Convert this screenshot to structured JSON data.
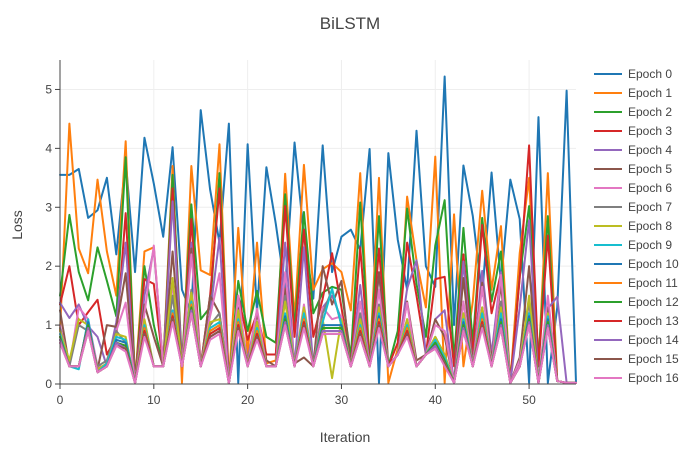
{
  "chart_data": {
    "type": "line",
    "title": "BiLSTM",
    "xlabel": "Iteration",
    "ylabel": "Loss",
    "xlim": [
      0,
      55
    ],
    "ylim": [
      0,
      5.5
    ],
    "x_ticks": [
      0,
      10,
      20,
      30,
      40,
      50
    ],
    "y_ticks": [
      0,
      1,
      2,
      3,
      4,
      5
    ],
    "grid": true,
    "legend_position": "right",
    "x": [
      0,
      1,
      2,
      3,
      4,
      5,
      6,
      7,
      8,
      9,
      10,
      11,
      12,
      13,
      14,
      15,
      16,
      17,
      18,
      19,
      20,
      21,
      22,
      23,
      24,
      25,
      26,
      27,
      28,
      29,
      30,
      31,
      32,
      33,
      34,
      35,
      36,
      37,
      38,
      39,
      40,
      41,
      42,
      43,
      44,
      45,
      46,
      47,
      48,
      49,
      50,
      51,
      52,
      53,
      54,
      55
    ],
    "series": [
      {
        "name": "Epoch 0",
        "color": "#1f77b4",
        "values": [
          3.55,
          3.55,
          3.65,
          2.82,
          2.95,
          3.5,
          2.2,
          3.8,
          1.9,
          4.18,
          3.4,
          2.5,
          4.02,
          1.6,
          1.2,
          4.65,
          3.3,
          2.4,
          4.42,
          0.02,
          4.07,
          1.22,
          3.68,
          2.72,
          1.6,
          4.1,
          2.5,
          1.45,
          4.05,
          1.9,
          2.5,
          2.62,
          2.28,
          3.99,
          0.02,
          3.92,
          2.45,
          1.6,
          4.3,
          2.0,
          1.65,
          5.22,
          1.0,
          3.71,
          2.85,
          1.5,
          3.59,
          1.72,
          3.47,
          2.8,
          0.02,
          4.53,
          0.02,
          1.3,
          4.98,
          0.02
        ]
      },
      {
        "name": "Epoch 1",
        "color": "#ff7f0e",
        "values": [
          0.9,
          4.42,
          2.3,
          1.88,
          3.47,
          2.25,
          1.5,
          4.12,
          0.02,
          2.25,
          2.32,
          0.3,
          3.7,
          0.02,
          3.7,
          1.93,
          1.85,
          4.07,
          0.02,
          2.65,
          0.5,
          2.4,
          0.35,
          0.4,
          3.57,
          1.1,
          3.72,
          1.6,
          1.95,
          2.05,
          1.9,
          1.25,
          3.58,
          0.3,
          3.5,
          0.02,
          0.6,
          3.18,
          2.1,
          1.3,
          3.86,
          0.02,
          2.88,
          0.3,
          1.4,
          3.28,
          1.6,
          2.68,
          0.02,
          2.22,
          3.5,
          0.3,
          3.58,
          0.05,
          0.02,
          0.02
        ]
      },
      {
        "name": "Epoch 2",
        "color": "#2ca02c",
        "values": [
          1.5,
          2.87,
          1.9,
          1.42,
          2.32,
          1.75,
          1.15,
          3.85,
          0.02,
          2.0,
          1.0,
          0.3,
          3.55,
          0.35,
          3.05,
          1.1,
          1.3,
          3.58,
          0.02,
          1.75,
          0.9,
          1.58,
          0.8,
          0.7,
          3.22,
          0.95,
          2.92,
          1.2,
          1.55,
          1.65,
          1.6,
          0.45,
          3.08,
          0.3,
          2.85,
          0.3,
          0.9,
          2.98,
          1.7,
          0.8,
          2.35,
          3.12,
          0.4,
          2.65,
          0.7,
          2.82,
          1.4,
          2.25,
          0.02,
          1.82,
          3.02,
          0.4,
          2.85,
          0.05,
          0.02,
          0.02
        ]
      },
      {
        "name": "Epoch 3",
        "color": "#d62728",
        "values": [
          1.35,
          2.0,
          1.0,
          1.22,
          1.43,
          0.5,
          0.8,
          2.9,
          0.02,
          1.78,
          1.7,
          0.3,
          3.32,
          0.3,
          2.8,
          0.3,
          1.5,
          3.32,
          0.02,
          1.5,
          0.75,
          1.2,
          0.5,
          0.5,
          3.02,
          0.8,
          2.62,
          0.8,
          1.45,
          2.22,
          1.3,
          0.3,
          2.32,
          0.3,
          2.3,
          0.3,
          0.7,
          2.4,
          1.5,
          0.5,
          1.78,
          1.82,
          0.3,
          2.2,
          0.5,
          2.7,
          1.2,
          1.88,
          0.02,
          1.8,
          4.05,
          0.3,
          2.52,
          0.05,
          0.02,
          0.02
        ]
      },
      {
        "name": "Epoch 4",
        "color": "#9467bd",
        "values": [
          1.38,
          1.12,
          1.35,
          0.98,
          0.8,
          0.3,
          1.05,
          2.4,
          0.02,
          1.5,
          2.3,
          0.3,
          3.1,
          0.3,
          2.4,
          0.3,
          1.2,
          2.48,
          0.02,
          1.3,
          0.4,
          1.25,
          0.3,
          0.3,
          2.4,
          0.3,
          2.32,
          0.3,
          1.3,
          1.5,
          1.1,
          0.3,
          1.68,
          0.3,
          1.88,
          0.3,
          0.5,
          1.62,
          2.1,
          0.5,
          1.1,
          1.25,
          0.02,
          2.08,
          0.3,
          1.92,
          0.5,
          1.9,
          0.02,
          1.3,
          2.78,
          0.02,
          1.28,
          1.48,
          0.02,
          0.02
        ]
      },
      {
        "name": "Epoch 5",
        "color": "#8c564b",
        "values": [
          1.25,
          0.3,
          0.3,
          1.05,
          0.25,
          1.0,
          0.97,
          1.88,
          0.02,
          1.35,
          0.8,
          0.3,
          2.25,
          0.3,
          2.3,
          0.3,
          1.5,
          1.2,
          0.02,
          1.28,
          0.35,
          1.2,
          0.4,
          0.3,
          1.62,
          0.35,
          0.45,
          0.3,
          2.0,
          1.35,
          1.75,
          0.3,
          0.8,
          0.3,
          1.9,
          0.3,
          0.5,
          1.4,
          0.4,
          0.5,
          1.1,
          0.8,
          0.02,
          1.8,
          0.3,
          1.72,
          0.4,
          1.7,
          0.02,
          0.45,
          2.0,
          0.02,
          1.3,
          0.05,
          0.02,
          0.02
        ]
      },
      {
        "name": "Epoch 6",
        "color": "#e377c2",
        "values": [
          1.0,
          0.3,
          1.3,
          1.1,
          0.3,
          0.3,
          0.9,
          1.38,
          0.02,
          1.2,
          2.35,
          0.3,
          1.7,
          0.3,
          2.2,
          0.3,
          1.15,
          1.88,
          0.02,
          1.5,
          0.3,
          1.28,
          0.3,
          0.3,
          1.9,
          0.3,
          1.35,
          0.3,
          1.3,
          1.1,
          1.15,
          0.3,
          1.4,
          0.3,
          1.6,
          0.3,
          0.5,
          1.38,
          0.3,
          0.5,
          1.0,
          0.9,
          0.02,
          1.4,
          0.3,
          1.65,
          0.3,
          1.85,
          0.02,
          0.4,
          1.4,
          0.02,
          1.5,
          0.05,
          0.02,
          0.02
        ]
      },
      {
        "name": "Epoch 7",
        "color": "#7f7f7f",
        "values": [
          0.95,
          0.3,
          1.0,
          0.9,
          0.3,
          0.4,
          0.9,
          0.7,
          0.02,
          1.0,
          0.3,
          0.3,
          1.5,
          0.3,
          1.6,
          0.3,
          1.0,
          1.2,
          0.02,
          1.2,
          0.3,
          1.0,
          0.3,
          0.3,
          1.5,
          0.3,
          1.2,
          0.3,
          1.2,
          1.6,
          1.0,
          0.3,
          1.2,
          0.3,
          1.35,
          0.3,
          0.5,
          1.1,
          0.3,
          0.5,
          0.8,
          0.5,
          0.02,
          1.2,
          0.3,
          1.3,
          0.3,
          1.4,
          0.02,
          0.3,
          1.4,
          0.02,
          1.2,
          0.05,
          0.02,
          0.02
        ]
      },
      {
        "name": "Epoch 8",
        "color": "#bcbd22",
        "values": [
          0.9,
          0.4,
          1.1,
          1.0,
          0.25,
          0.35,
          0.85,
          0.8,
          0.02,
          1.1,
          0.3,
          0.3,
          1.8,
          0.3,
          1.55,
          0.3,
          1.05,
          1.1,
          0.02,
          1.25,
          0.3,
          1.05,
          0.3,
          0.3,
          1.4,
          0.3,
          1.3,
          0.3,
          1.1,
          0.1,
          1.1,
          0.3,
          1.1,
          0.3,
          1.3,
          0.3,
          0.5,
          1.1,
          0.3,
          0.5,
          0.8,
          0.5,
          0.02,
          1.2,
          0.3,
          1.3,
          0.3,
          1.3,
          0.02,
          0.3,
          1.5,
          0.02,
          1.2,
          0.05,
          0.02,
          0.02
        ]
      },
      {
        "name": "Epoch 9",
        "color": "#17becf",
        "values": [
          0.85,
          0.3,
          0.25,
          1.1,
          0.2,
          0.35,
          0.8,
          0.75,
          0.02,
          1.0,
          0.3,
          0.3,
          1.25,
          0.3,
          1.4,
          0.3,
          0.95,
          1.05,
          0.02,
          1.1,
          0.3,
          0.95,
          0.3,
          0.3,
          1.2,
          0.3,
          1.2,
          0.3,
          1.05,
          1.62,
          1.0,
          0.3,
          1.0,
          0.3,
          1.2,
          0.3,
          0.5,
          1.0,
          0.3,
          0.5,
          0.75,
          0.45,
          0.02,
          1.1,
          0.3,
          1.2,
          0.3,
          1.2,
          0.02,
          0.3,
          1.2,
          0.02,
          1.15,
          0.05,
          0.02,
          0.02
        ]
      },
      {
        "name": "Epoch 10",
        "color": "#1f77b4",
        "values": [
          0.8,
          0.3,
          0.3,
          1.05,
          0.2,
          0.3,
          0.75,
          0.7,
          0.02,
          0.95,
          0.3,
          0.3,
          1.2,
          0.3,
          1.3,
          0.3,
          0.9,
          1.0,
          0.02,
          1.05,
          0.3,
          0.9,
          0.3,
          0.3,
          1.15,
          0.3,
          1.1,
          0.3,
          1.0,
          1.0,
          1.0,
          0.3,
          0.95,
          0.3,
          1.15,
          0.3,
          0.5,
          0.95,
          0.3,
          0.5,
          0.7,
          0.4,
          0.02,
          1.05,
          0.3,
          1.1,
          0.3,
          1.1,
          0.02,
          0.3,
          1.15,
          0.02,
          1.1,
          0.05,
          0.02,
          0.02
        ]
      },
      {
        "name": "Epoch 11",
        "color": "#ff7f0e",
        "values": [
          0.8,
          0.3,
          0.3,
          1.0,
          0.2,
          0.3,
          0.7,
          0.65,
          0.02,
          0.95,
          0.3,
          0.3,
          1.2,
          0.3,
          1.35,
          0.3,
          0.9,
          1.0,
          0.02,
          1.05,
          0.3,
          0.9,
          0.3,
          0.3,
          1.1,
          0.3,
          1.1,
          0.3,
          0.95,
          0.95,
          0.95,
          0.3,
          0.95,
          0.3,
          1.1,
          0.3,
          0.5,
          0.95,
          0.3,
          0.5,
          0.7,
          0.4,
          0.02,
          1.0,
          0.3,
          1.1,
          0.3,
          1.05,
          0.02,
          0.3,
          1.1,
          0.02,
          1.05,
          0.05,
          0.02,
          0.02
        ]
      },
      {
        "name": "Epoch 12",
        "color": "#2ca02c",
        "values": [
          0.8,
          0.3,
          0.3,
          1.0,
          0.2,
          0.3,
          0.7,
          0.65,
          0.02,
          0.9,
          0.3,
          0.3,
          1.15,
          0.3,
          1.3,
          0.3,
          0.85,
          0.95,
          0.02,
          1.0,
          0.3,
          0.85,
          0.3,
          0.3,
          1.1,
          0.3,
          1.05,
          0.3,
          0.95,
          0.95,
          0.95,
          0.3,
          0.9,
          0.3,
          1.05,
          0.3,
          0.5,
          0.9,
          0.3,
          0.5,
          0.7,
          0.4,
          0.02,
          1.0,
          0.3,
          1.05,
          0.3,
          1.05,
          0.02,
          0.3,
          1.1,
          0.02,
          1.05,
          0.05,
          0.02,
          0.02
        ]
      },
      {
        "name": "Epoch 13",
        "color": "#d62728",
        "values": [
          0.75,
          0.3,
          0.3,
          0.95,
          0.2,
          0.3,
          0.7,
          0.6,
          0.02,
          0.9,
          0.3,
          0.3,
          1.15,
          0.3,
          1.25,
          0.3,
          0.85,
          0.95,
          0.02,
          1.0,
          0.3,
          0.85,
          0.3,
          0.3,
          1.05,
          0.3,
          1.05,
          0.3,
          0.9,
          0.9,
          0.9,
          0.3,
          0.9,
          0.3,
          1.05,
          0.3,
          0.5,
          0.9,
          0.3,
          0.5,
          0.65,
          0.35,
          0.02,
          0.95,
          0.3,
          1.05,
          0.3,
          1.0,
          0.02,
          0.3,
          1.05,
          0.02,
          1.0,
          0.05,
          0.02,
          0.02
        ]
      },
      {
        "name": "Epoch 14",
        "color": "#9467bd",
        "values": [
          0.75,
          0.3,
          0.3,
          0.95,
          0.2,
          0.3,
          0.7,
          0.6,
          0.02,
          0.85,
          0.3,
          0.3,
          1.1,
          0.3,
          1.25,
          0.3,
          0.8,
          0.9,
          0.02,
          0.95,
          0.3,
          0.8,
          0.3,
          0.3,
          1.05,
          0.3,
          1.0,
          0.3,
          0.9,
          0.9,
          0.9,
          0.3,
          0.85,
          0.3,
          1.0,
          0.3,
          0.5,
          0.85,
          0.3,
          0.5,
          0.65,
          0.35,
          0.02,
          0.95,
          0.3,
          1.0,
          0.3,
          1.0,
          0.02,
          0.3,
          1.05,
          0.02,
          1.0,
          0.05,
          0.02,
          0.02
        ]
      },
      {
        "name": "Epoch 15",
        "color": "#8c564b",
        "values": [
          0.7,
          0.3,
          0.3,
          0.9,
          0.2,
          0.3,
          0.65,
          0.6,
          0.02,
          0.85,
          0.3,
          0.3,
          1.1,
          0.3,
          1.2,
          0.3,
          0.8,
          0.9,
          0.02,
          0.95,
          0.3,
          0.8,
          0.3,
          0.3,
          1.0,
          0.3,
          1.0,
          0.3,
          0.85,
          0.85,
          0.85,
          0.3,
          0.85,
          0.3,
          1.0,
          0.3,
          0.5,
          0.85,
          0.3,
          0.5,
          0.6,
          0.35,
          0.02,
          0.9,
          0.3,
          1.0,
          0.3,
          0.95,
          0.02,
          0.3,
          1.0,
          0.02,
          0.95,
          0.05,
          0.02,
          0.02
        ]
      },
      {
        "name": "Epoch 16",
        "color": "#e377c2",
        "values": [
          0.7,
          0.3,
          0.3,
          0.9,
          0.2,
          0.3,
          0.65,
          0.55,
          0.02,
          0.8,
          0.3,
          0.3,
          1.05,
          0.3,
          1.2,
          0.3,
          0.75,
          0.85,
          0.02,
          0.9,
          0.3,
          0.75,
          0.3,
          0.3,
          1.0,
          0.3,
          0.95,
          0.3,
          0.85,
          0.85,
          0.85,
          0.3,
          0.8,
          0.3,
          0.95,
          0.3,
          0.5,
          0.8,
          0.3,
          0.5,
          0.6,
          0.3,
          0.02,
          0.9,
          0.3,
          0.95,
          0.3,
          0.95,
          0.02,
          0.3,
          1.0,
          0.02,
          0.95,
          0.05,
          0.02,
          0.02
        ]
      }
    ]
  }
}
